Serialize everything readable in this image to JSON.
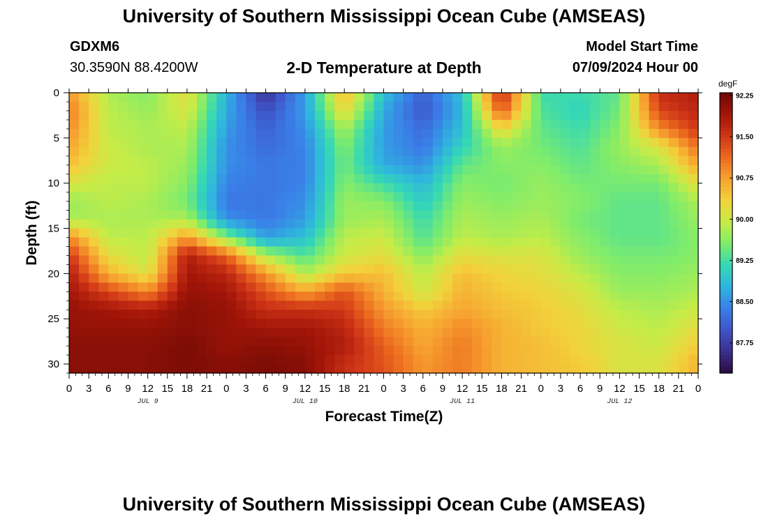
{
  "header": {
    "title": "University of Southern Mississippi Ocean Cube (AMSEAS)",
    "station_id": "GDXM6",
    "coordinates": "30.3590N  88.4200W",
    "subtitle": "2-D Temperature at Depth",
    "model_start_label": "Model Start Time",
    "model_start_value": "07/09/2024 Hour 00"
  },
  "footer": {
    "title": "University of Southern Mississippi Ocean Cube (AMSEAS)"
  },
  "colors": {
    "palette": [
      "#2a0c3e",
      "#3b2f8f",
      "#3f55c8",
      "#3a7fe8",
      "#2fb4de",
      "#35d8b5",
      "#7fec6b",
      "#c6ec47",
      "#f2d23c",
      "#f7a230",
      "#ec6a1f",
      "#cf3517",
      "#a21508",
      "#6e0a05"
    ]
  },
  "chart_data": {
    "type": "heatmap",
    "title": "2-D Temperature at Depth",
    "xlabel": "Forecast Time(Z)",
    "ylabel": "Depth (ft)",
    "x_unit_hours_per_step": 3,
    "xlim": [
      0,
      96
    ],
    "ylim": [
      0,
      31
    ],
    "y_inverted": true,
    "x_tick_labels": [
      "0",
      "3",
      "6",
      "9",
      "12",
      "15",
      "18",
      "21",
      "0",
      "3",
      "6",
      "9",
      "12",
      "15",
      "18",
      "21",
      "0",
      "3",
      "6",
      "9",
      "12",
      "15",
      "18",
      "21",
      "0",
      "3",
      "6",
      "9",
      "12",
      "15",
      "18",
      "21",
      "0"
    ],
    "y_ticks": [
      0,
      5,
      10,
      15,
      20,
      25,
      30
    ],
    "y_tick_labels": [
      "0",
      "5",
      "10",
      "15",
      "20",
      "25",
      "30"
    ],
    "day_labels": [
      {
        "text": "JUL 9",
        "hour": 12
      },
      {
        "text": "JUL 10",
        "hour": 36
      },
      {
        "text": "JUL 11",
        "hour": 60
      },
      {
        "text": "JUL 12",
        "hour": 84
      }
    ],
    "colorbar": {
      "unit": "degF",
      "min": 87.2,
      "max": 92.3,
      "tick_values": [
        92.25,
        91.5,
        90.75,
        90.0,
        89.25,
        88.5,
        87.75
      ],
      "tick_labels": [
        "92.25",
        "91.50",
        "90.75",
        "90.00",
        "89.25",
        "88.50",
        "87.75"
      ]
    },
    "depths": [
      0,
      2,
      4,
      6,
      8,
      10,
      12,
      14,
      16,
      18,
      20,
      22,
      24,
      26,
      28,
      30
    ],
    "hours": [
      0,
      6,
      12,
      18,
      24,
      30,
      36,
      42,
      48,
      54,
      60,
      66,
      72,
      78,
      84,
      90,
      96
    ],
    "temperature_degF": [
      [
        90.8,
        89.8,
        89.6,
        90.2,
        88.8,
        87.6,
        88.6,
        90.6,
        88.9,
        88.1,
        88.9,
        91.7,
        89.2,
        89.2,
        89.4,
        91.6,
        91.8
      ],
      [
        91.0,
        89.9,
        89.7,
        90.1,
        88.7,
        87.9,
        88.6,
        90.3,
        88.7,
        88.0,
        88.8,
        91.3,
        89.3,
        89.1,
        89.5,
        91.4,
        91.7
      ],
      [
        90.9,
        89.9,
        89.8,
        89.9,
        88.6,
        88.1,
        88.5,
        89.8,
        88.6,
        88.2,
        88.9,
        90.3,
        89.4,
        89.2,
        89.6,
        90.9,
        91.5
      ],
      [
        90.7,
        90.0,
        89.8,
        89.8,
        88.5,
        88.2,
        88.4,
        89.6,
        88.6,
        88.3,
        89.1,
        89.7,
        89.5,
        89.3,
        89.7,
        90.1,
        91.1
      ],
      [
        90.5,
        90.0,
        89.9,
        89.7,
        88.5,
        88.3,
        88.4,
        89.5,
        88.7,
        88.5,
        89.4,
        89.6,
        89.6,
        89.4,
        89.6,
        89.8,
        90.7
      ],
      [
        90.1,
        89.9,
        89.9,
        89.6,
        88.4,
        88.3,
        88.4,
        89.6,
        89.2,
        88.8,
        89.6,
        89.5,
        89.7,
        89.5,
        89.5,
        89.5,
        90.2
      ],
      [
        89.7,
        89.9,
        89.8,
        89.5,
        88.3,
        88.3,
        88.5,
        89.7,
        89.6,
        89.0,
        89.7,
        89.6,
        89.7,
        89.6,
        89.4,
        89.4,
        89.8
      ],
      [
        89.8,
        89.8,
        89.8,
        89.8,
        88.5,
        88.3,
        88.6,
        89.7,
        89.8,
        89.2,
        89.8,
        89.7,
        89.8,
        89.5,
        89.4,
        89.4,
        89.7
      ],
      [
        90.9,
        89.9,
        89.9,
        90.8,
        89.6,
        88.6,
        88.9,
        89.9,
        90.0,
        89.3,
        89.9,
        89.8,
        89.9,
        89.6,
        89.4,
        89.4,
        89.6
      ],
      [
        91.5,
        90.2,
        89.9,
        91.8,
        91.2,
        89.8,
        89.3,
        90.0,
        90.2,
        89.6,
        90.2,
        90.1,
        90.1,
        89.7,
        89.5,
        89.5,
        89.6
      ],
      [
        91.8,
        90.6,
        90.1,
        91.9,
        91.7,
        90.8,
        89.8,
        90.4,
        90.5,
        89.9,
        90.5,
        90.3,
        90.2,
        89.9,
        89.6,
        89.6,
        89.7
      ],
      [
        91.9,
        91.4,
        90.9,
        92.0,
        91.9,
        91.3,
        90.7,
        91.3,
        90.6,
        90.0,
        90.6,
        90.4,
        90.3,
        90.1,
        89.7,
        89.7,
        89.8
      ],
      [
        92.0,
        91.9,
        91.8,
        92.1,
        92.0,
        91.6,
        91.6,
        91.5,
        90.8,
        90.4,
        90.7,
        90.5,
        90.4,
        90.2,
        89.9,
        89.8,
        90.0
      ],
      [
        92.0,
        92.0,
        92.0,
        92.1,
        92.0,
        91.9,
        91.9,
        91.7,
        91.0,
        90.6,
        90.9,
        90.6,
        90.4,
        90.3,
        90.0,
        89.9,
        90.2
      ],
      [
        92.1,
        92.1,
        92.1,
        92.2,
        92.0,
        92.1,
        92.0,
        91.8,
        91.2,
        90.7,
        91.0,
        90.6,
        90.5,
        90.3,
        90.1,
        90.0,
        90.4
      ],
      [
        92.1,
        92.1,
        92.1,
        92.2,
        92.1,
        92.2,
        92.1,
        91.6,
        91.3,
        90.8,
        91.0,
        90.6,
        90.5,
        90.4,
        90.1,
        90.1,
        90.6
      ]
    ]
  }
}
